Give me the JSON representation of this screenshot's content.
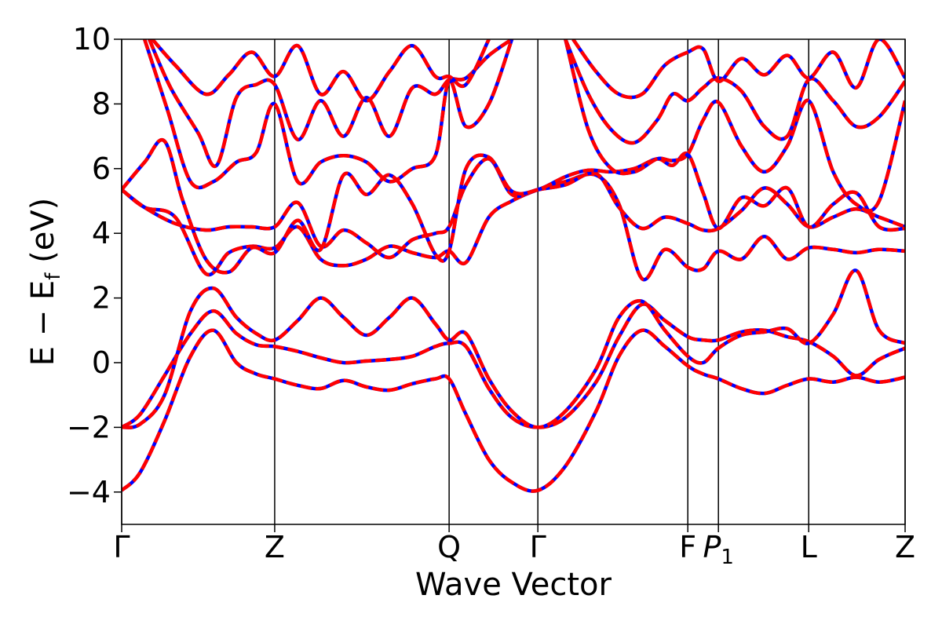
{
  "chart_data": {
    "type": "line",
    "title": "",
    "xlabel": "Wave Vector",
    "ylabel_parts": {
      "main": "E − E",
      "sub": "f",
      "unit": " (eV)"
    },
    "ylim": [
      -5,
      10
    ],
    "yticks": [
      {
        "value": -4,
        "label": "−4"
      },
      {
        "value": -2,
        "label": "−2"
      },
      {
        "value": 0,
        "label": "0"
      },
      {
        "value": 2,
        "label": "2"
      },
      {
        "value": 4,
        "label": "4"
      },
      {
        "value": 6,
        "label": "6"
      },
      {
        "value": 8,
        "label": "8"
      },
      {
        "value": 10,
        "label": "10"
      }
    ],
    "xlim": [
      0,
      5.12
    ],
    "kpoints": [
      {
        "x": 0.0,
        "label": "Γ",
        "sub": ""
      },
      {
        "x": 1.0,
        "label": "Z",
        "sub": ""
      },
      {
        "x": 2.14,
        "label": "Q",
        "sub": ""
      },
      {
        "x": 2.72,
        "label": "Γ",
        "sub": ""
      },
      {
        "x": 3.7,
        "label": "F",
        "sub": ""
      },
      {
        "x": 3.9,
        "label": "P",
        "sub": "1"
      },
      {
        "x": 4.49,
        "label": "L",
        "sub": ""
      },
      {
        "x": 5.12,
        "label": "Z",
        "sub": ""
      }
    ],
    "grid": false,
    "line_styles": {
      "solid_color": "#0000ff",
      "dashed_color": "#ff0000"
    },
    "series": [
      {
        "x": [
          0.0,
          0.12,
          0.28,
          0.45,
          0.6,
          0.75,
          0.88,
          1.0,
          1.15,
          1.3,
          1.45,
          1.6,
          1.75,
          1.9,
          2.05,
          2.14,
          2.25,
          2.4,
          2.55,
          2.72,
          2.9,
          3.1,
          3.25,
          3.4,
          3.55,
          3.7,
          3.8,
          3.9,
          4.05,
          4.2,
          4.35,
          4.49,
          4.65,
          4.8,
          4.95,
          5.12
        ],
        "y": [
          -3.95,
          -3.4,
          -1.8,
          0.2,
          1.0,
          0.0,
          -0.35,
          -0.5,
          -0.7,
          -0.8,
          -0.55,
          -0.75,
          -0.85,
          -0.65,
          -0.5,
          -0.5,
          -1.6,
          -3.0,
          -3.7,
          -3.95,
          -3.2,
          -1.5,
          0.2,
          1.0,
          0.5,
          -0.1,
          -0.35,
          -0.5,
          -0.8,
          -0.95,
          -0.7,
          -0.5,
          -0.6,
          -0.45,
          -0.6,
          -0.45
        ]
      },
      {
        "x": [
          0.0,
          0.12,
          0.28,
          0.45,
          0.6,
          0.75,
          0.88,
          1.0,
          1.15,
          1.3,
          1.45,
          1.6,
          1.75,
          1.9,
          2.05,
          2.14,
          2.25,
          2.4,
          2.55,
          2.72,
          2.9,
          3.1,
          3.25,
          3.4,
          3.55,
          3.7,
          3.8,
          3.9,
          4.05,
          4.2,
          4.35,
          4.49,
          4.65,
          4.8,
          4.95,
          5.12
        ],
        "y": [
          -2.0,
          -1.6,
          -0.4,
          0.9,
          1.6,
          0.9,
          0.55,
          0.5,
          0.35,
          0.15,
          0.0,
          0.05,
          0.1,
          0.2,
          0.5,
          0.6,
          0.5,
          -0.8,
          -1.7,
          -2.0,
          -1.7,
          -0.6,
          0.8,
          1.8,
          1.3,
          0.8,
          0.7,
          0.7,
          0.95,
          1.0,
          0.8,
          0.65,
          0.2,
          -0.4,
          0.1,
          0.45
        ]
      },
      {
        "x": [
          0.0,
          0.12,
          0.28,
          0.45,
          0.6,
          0.75,
          0.88,
          1.0,
          1.15,
          1.3,
          1.45,
          1.6,
          1.75,
          1.9,
          2.05,
          2.14,
          2.25,
          2.4,
          2.55,
          2.72,
          2.9,
          3.1,
          3.25,
          3.4,
          3.55,
          3.7,
          3.8,
          3.9,
          4.05,
          4.2,
          4.35,
          4.49,
          4.65,
          4.8,
          4.95,
          5.12
        ],
        "y": [
          -2.0,
          -1.9,
          -1.0,
          1.6,
          2.3,
          1.4,
          0.9,
          0.7,
          1.3,
          2.0,
          1.4,
          0.85,
          1.4,
          2.0,
          1.2,
          0.7,
          0.9,
          -0.5,
          -1.5,
          -2.0,
          -1.5,
          -0.2,
          1.4,
          1.9,
          1.0,
          0.2,
          0.0,
          0.45,
          0.85,
          0.95,
          1.05,
          0.6,
          1.5,
          2.85,
          1.0,
          0.6
        ]
      },
      {
        "x": [
          0.0,
          0.15,
          0.35,
          0.55,
          0.7,
          0.85,
          1.0,
          1.15,
          1.3,
          1.45,
          1.6,
          1.75,
          1.9,
          2.05,
          2.14,
          2.25,
          2.4,
          2.55,
          2.72,
          2.9,
          3.1,
          3.25,
          3.4,
          3.55,
          3.7,
          3.8,
          3.9,
          4.05,
          4.2,
          4.35,
          4.49,
          4.65,
          4.8,
          4.95,
          5.12
        ],
        "y": [
          5.35,
          4.8,
          4.5,
          2.75,
          3.4,
          3.6,
          3.55,
          4.2,
          3.2,
          3.0,
          3.2,
          3.6,
          3.4,
          3.25,
          3.45,
          3.1,
          4.5,
          5.0,
          5.35,
          5.6,
          5.8,
          4.9,
          2.6,
          3.5,
          2.95,
          2.9,
          3.45,
          3.2,
          3.9,
          3.2,
          3.55,
          3.5,
          3.4,
          3.5,
          3.45
        ]
      },
      {
        "x": [
          0.0,
          0.15,
          0.35,
          0.55,
          0.7,
          0.85,
          1.0,
          1.15,
          1.3,
          1.45,
          1.6,
          1.75,
          1.9,
          2.05,
          2.14,
          2.25,
          2.4,
          2.55,
          2.72,
          2.9,
          3.1,
          3.25,
          3.4,
          3.55,
          3.7,
          3.8,
          3.9,
          4.05,
          4.2,
          4.35,
          4.49,
          4.65,
          4.8,
          4.95,
          5.12
        ],
        "y": [
          5.35,
          4.8,
          4.3,
          4.1,
          4.2,
          4.2,
          4.2,
          4.95,
          3.6,
          4.1,
          3.7,
          3.25,
          3.8,
          4.0,
          4.2,
          5.5,
          6.3,
          5.2,
          5.35,
          5.5,
          5.85,
          4.8,
          4.15,
          4.5,
          4.3,
          4.1,
          4.15,
          4.7,
          5.4,
          4.9,
          4.2,
          4.5,
          4.75,
          4.5,
          4.2
        ]
      },
      {
        "x": [
          0.0,
          0.15,
          0.28,
          0.4,
          0.55,
          0.7,
          0.85,
          1.0,
          1.15,
          1.3,
          1.45,
          1.6,
          1.75,
          1.9,
          2.05,
          2.14,
          2.25,
          2.4,
          2.55,
          2.72,
          2.9,
          3.05,
          3.2,
          3.35,
          3.5,
          3.6,
          3.7,
          3.8,
          3.9,
          4.05,
          4.2,
          4.35,
          4.49,
          4.65,
          4.8,
          4.95,
          5.12
        ],
        "y": [
          5.35,
          6.2,
          6.85,
          5.0,
          3.2,
          2.8,
          3.55,
          3.4,
          4.4,
          3.5,
          5.8,
          5.2,
          5.8,
          4.9,
          3.35,
          3.45,
          6.0,
          6.35,
          5.3,
          5.35,
          5.75,
          5.95,
          5.9,
          6.0,
          6.3,
          6.1,
          6.45,
          5.25,
          4.15,
          5.1,
          4.85,
          5.4,
          4.2,
          4.9,
          5.25,
          4.2,
          4.15
        ]
      },
      {
        "x": [
          0.15,
          0.3,
          0.45,
          0.6,
          0.75,
          0.88,
          1.0,
          1.15,
          1.3,
          1.45,
          1.6,
          1.75,
          1.9,
          2.05,
          2.14,
          2.25,
          2.4,
          2.55
        ],
        "y": [
          10.0,
          7.8,
          5.6,
          5.6,
          6.2,
          6.5,
          8.0,
          5.6,
          6.2,
          6.4,
          6.2,
          5.6,
          6.0,
          6.4,
          8.7,
          7.3,
          8.0,
          10.0
        ]
      },
      {
        "x": [
          2.9,
          3.05,
          3.2,
          3.35,
          3.5,
          3.6,
          3.7,
          3.8,
          3.9,
          4.05,
          4.2,
          4.35,
          4.49,
          4.65,
          4.8,
          4.95,
          5.12
        ],
        "y": [
          10.0,
          7.2,
          6.0,
          5.9,
          6.3,
          6.25,
          6.45,
          7.5,
          8.05,
          6.7,
          5.9,
          6.7,
          8.1,
          5.9,
          4.9,
          5.0,
          8.1
        ]
      },
      {
        "x": [
          0.18,
          0.32,
          0.5,
          0.62,
          0.75,
          0.88,
          1.0,
          1.15,
          1.3,
          1.45,
          1.6,
          1.75,
          1.9,
          2.05,
          2.14,
          2.25,
          2.4,
          2.55
        ],
        "y": [
          10.0,
          8.5,
          7.1,
          6.1,
          8.2,
          8.6,
          8.6,
          6.9,
          8.1,
          7.0,
          8.2,
          7.0,
          8.5,
          8.3,
          8.75,
          8.8,
          9.5,
          10.0
        ]
      },
      {
        "x": [
          2.9,
          3.05,
          3.2,
          3.35,
          3.5,
          3.6,
          3.7,
          3.8,
          3.9,
          4.05,
          4.2,
          4.35,
          4.49,
          4.65,
          4.8,
          4.95,
          5.12
        ],
        "y": [
          10.0,
          8.3,
          7.2,
          6.8,
          7.5,
          8.3,
          8.1,
          8.5,
          8.8,
          8.4,
          7.3,
          7.0,
          8.75,
          8.1,
          7.3,
          7.6,
          8.7
        ]
      },
      {
        "x": [
          0.2,
          0.35,
          0.55,
          0.7,
          0.85,
          1.0,
          1.15,
          1.3,
          1.45,
          1.6,
          1.75,
          1.9,
          2.05,
          2.14,
          2.25,
          2.4
        ],
        "y": [
          10.0,
          9.2,
          8.3,
          8.9,
          9.6,
          8.85,
          9.8,
          8.3,
          9.0,
          8.1,
          9.0,
          9.8,
          8.85,
          8.85,
          8.6,
          10.0
        ]
      },
      {
        "x": [
          2.95,
          3.1,
          3.25,
          3.4,
          3.55,
          3.7,
          3.8,
          3.9,
          4.05,
          4.2,
          4.35,
          4.49,
          4.65,
          4.8,
          4.95,
          5.12
        ],
        "y": [
          10.0,
          9.0,
          8.3,
          8.3,
          9.2,
          9.6,
          9.7,
          8.7,
          9.4,
          8.9,
          9.5,
          8.8,
          9.6,
          8.5,
          10.0,
          8.8
        ]
      }
    ]
  }
}
